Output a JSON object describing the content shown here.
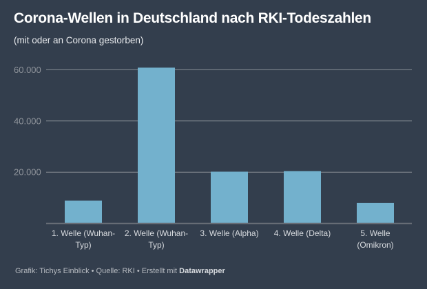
{
  "chart_data": {
    "type": "bar",
    "title": "Corona-Wellen in Deutschland nach RKI-Todeszahlen",
    "subtitle": "(mit oder an Corona gestorben)",
    "categories": [
      [
        "1. Welle (Wuhan-",
        "Typ)"
      ],
      [
        "2. Welle (Wuhan-",
        "Typ)"
      ],
      [
        "3. Welle (Alpha)"
      ],
      [
        "4. Welle (Delta)"
      ],
      [
        "5. Welle",
        "(Omikron)"
      ]
    ],
    "values": [
      8900,
      60800,
      20200,
      20400,
      8000
    ],
    "yticks": [
      20000,
      40000,
      60000
    ],
    "ytick_labels": [
      "20.000",
      "40.000",
      "60.000"
    ],
    "ylim": [
      0,
      60000
    ],
    "xlabel": "",
    "ylabel": "",
    "grid": true,
    "bar_color": "#73b1cd"
  },
  "footer": {
    "prefix": "Grafik: Tichys Einblick • Quelle: RKI • Erstellt mit ",
    "brand": "Datawrapper"
  }
}
